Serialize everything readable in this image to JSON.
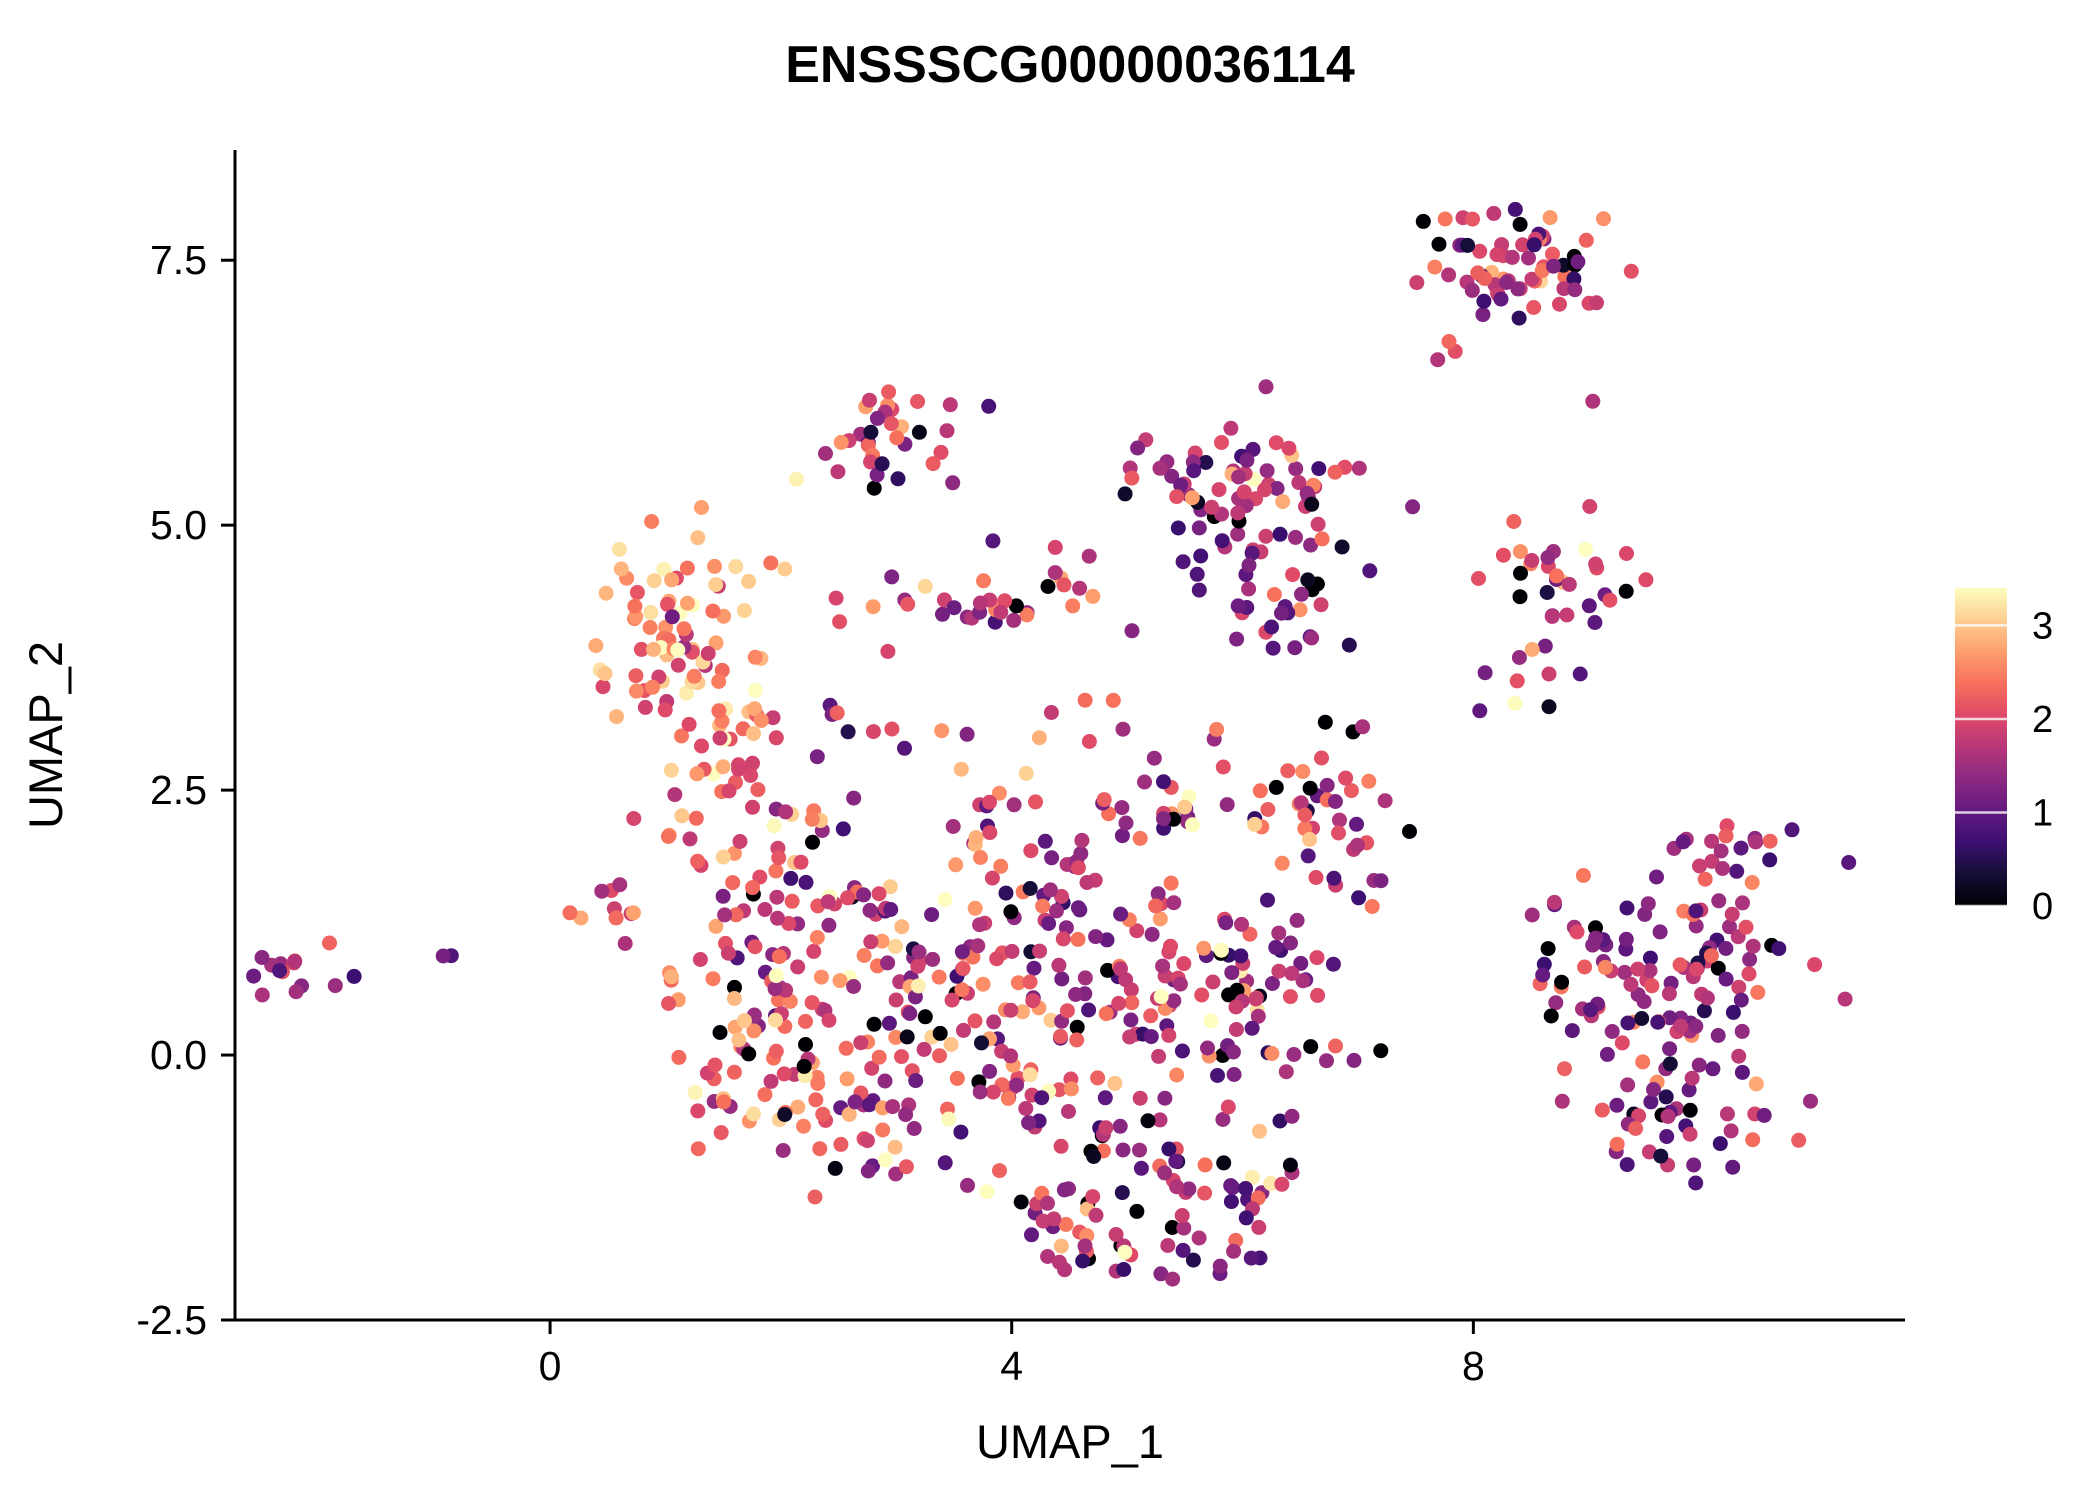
{
  "chart_data": {
    "type": "scatter",
    "title": "ENSSSCG00000036114",
    "xlabel": "UMAP_1",
    "ylabel": "UMAP_2",
    "xlim": [
      -2.73,
      11.74
    ],
    "ylim": [
      -2.5,
      8.54
    ],
    "xticks": [
      0,
      4,
      8
    ],
    "xtick_labels": [
      "0",
      "4",
      "8"
    ],
    "yticks": [
      -2.5,
      0.0,
      2.5,
      5.0,
      7.5
    ],
    "ytick_labels": [
      "-2.5",
      "0.0",
      "2.5",
      "5.0",
      "7.5"
    ],
    "grid": false,
    "legend_position": "right",
    "point_radius_px": 7.5,
    "seed": 7,
    "colorbar": {
      "min": 0,
      "max": 3.4,
      "ticks": [
        0,
        1,
        2,
        3
      ],
      "tick_labels": [
        "0",
        "1",
        "2",
        "3"
      ],
      "colormap_name": "magma",
      "stops": [
        [
          0.0,
          "#000004"
        ],
        [
          0.1,
          "#140e36"
        ],
        [
          0.2,
          "#3b0f70"
        ],
        [
          0.3,
          "#641a80"
        ],
        [
          0.4,
          "#8c2981"
        ],
        [
          0.5,
          "#b73779"
        ],
        [
          0.6,
          "#de4968"
        ],
        [
          0.7,
          "#f7705c"
        ],
        [
          0.8,
          "#fe9f6d"
        ],
        [
          0.9,
          "#fecf92"
        ],
        [
          1.0,
          "#fcfdbf"
        ]
      ]
    },
    "cluster_fields": [
      "x",
      "y",
      "sd_x",
      "sd_y",
      "n_points",
      "expr_mean",
      "expr_sd",
      "zero_fraction"
    ],
    "clusters": [
      [
        -2.25,
        0.75,
        0.2,
        0.12,
        16,
        1.6,
        0.7,
        0.06
      ],
      [
        -0.85,
        0.9,
        0.05,
        0.05,
        2,
        1.3,
        0.3,
        0
      ],
      [
        8.35,
        7.5,
        0.42,
        0.26,
        68,
        1.8,
        0.75,
        0.07
      ],
      [
        7.75,
        6.65,
        0.12,
        0.12,
        3,
        2.2,
        0.4,
        0
      ],
      [
        9.0,
        6.15,
        0.03,
        0.03,
        1,
        1.6,
        0.1,
        0
      ],
      [
        2.9,
        5.8,
        0.28,
        0.27,
        30,
        1.7,
        0.75,
        0.1
      ],
      [
        3.35,
        5.55,
        0.12,
        0.18,
        4,
        1.6,
        0.5,
        0
      ],
      [
        6.0,
        5.4,
        0.45,
        0.33,
        72,
        1.6,
        0.65,
        0.04
      ],
      [
        6.3,
        4.4,
        0.35,
        0.3,
        34,
        1.4,
        0.6,
        0.05
      ],
      [
        8.7,
        4.5,
        0.3,
        0.28,
        30,
        1.7,
        0.65,
        0.05
      ],
      [
        8.4,
        3.6,
        0.22,
        0.15,
        10,
        1.6,
        0.6,
        0.1
      ],
      [
        1.1,
        3.9,
        0.38,
        0.45,
        80,
        2.7,
        0.5,
        0.01
      ],
      [
        1.6,
        2.9,
        0.28,
        0.3,
        28,
        2.5,
        0.6,
        0.02
      ],
      [
        3.8,
        4.3,
        0.6,
        0.14,
        28,
        1.8,
        0.8,
        0.1
      ],
      [
        2.6,
        3.3,
        0.3,
        0.3,
        12,
        1.8,
        0.7,
        0.05
      ],
      [
        4.5,
        4.7,
        0.3,
        0.22,
        6,
        1.9,
        0.6,
        0
      ],
      [
        0.5,
        1.4,
        0.28,
        0.14,
        9,
        2.0,
        0.6,
        0
      ],
      [
        1.0,
        0.7,
        0.2,
        0.15,
        6,
        2.0,
        0.7,
        0
      ],
      [
        1.4,
        2.2,
        0.22,
        0.18,
        10,
        2.3,
        0.6,
        0
      ],
      [
        2.0,
        1.6,
        0.35,
        0.4,
        42,
        2.0,
        0.7,
        0.03
      ],
      [
        1.8,
        0.4,
        0.35,
        0.45,
        55,
        2.2,
        0.7,
        0.02
      ],
      [
        1.5,
        -0.5,
        0.2,
        0.3,
        10,
        2.2,
        0.6,
        0
      ],
      [
        2.6,
        -0.5,
        0.4,
        0.4,
        45,
        2.0,
        0.7,
        0.03
      ],
      [
        3.3,
        0.6,
        0.45,
        0.5,
        55,
        1.9,
        0.7,
        0.04
      ],
      [
        4.2,
        -0.2,
        0.5,
        0.55,
        60,
        1.8,
        0.7,
        0.05
      ],
      [
        4.6,
        1.2,
        0.5,
        0.5,
        58,
        1.9,
        0.7,
        0.04
      ],
      [
        5.4,
        0.3,
        0.5,
        0.55,
        60,
        1.7,
        0.7,
        0.05
      ],
      [
        5.6,
        -1.2,
        0.45,
        0.4,
        45,
        1.6,
        0.7,
        0.06
      ],
      [
        4.5,
        -1.6,
        0.4,
        0.22,
        25,
        1.8,
        0.7,
        0.05
      ],
      [
        5.3,
        -1.9,
        0.3,
        0.12,
        14,
        1.5,
        0.6,
        0.07
      ],
      [
        6.2,
        0.6,
        0.35,
        0.5,
        40,
        1.6,
        0.65,
        0.05
      ],
      [
        6.5,
        2.3,
        0.35,
        0.33,
        30,
        2.0,
        0.7,
        0.05
      ],
      [
        5.3,
        2.3,
        0.4,
        0.28,
        24,
        1.9,
        0.7,
        0.06
      ],
      [
        3.6,
        2.2,
        0.4,
        0.33,
        20,
        2.0,
        0.7,
        0.05
      ],
      [
        2.9,
        1.2,
        0.3,
        0.3,
        20,
        2.1,
        0.7,
        0
      ],
      [
        7.0,
        1.6,
        0.22,
        0.3,
        12,
        1.8,
        0.6,
        0.05
      ],
      [
        7.2,
        0.0,
        0.06,
        0.06,
        1,
        0.1,
        0.05,
        1
      ],
      [
        4.6,
        3.1,
        0.25,
        0.2,
        5,
        2.0,
        0.6,
        0
      ],
      [
        7.0,
        3.0,
        0.15,
        0.12,
        3,
        2.2,
        0.5,
        0.3
      ],
      [
        7.4,
        5.2,
        0.05,
        0.05,
        1,
        1.2,
        0.1,
        0
      ],
      [
        9.3,
        0.6,
        0.4,
        0.5,
        60,
        1.4,
        0.6,
        0.05
      ],
      [
        10.1,
        0.9,
        0.4,
        0.45,
        55,
        1.5,
        0.65,
        0.04
      ],
      [
        9.8,
        -0.6,
        0.45,
        0.33,
        40,
        1.5,
        0.6,
        0.05
      ],
      [
        10.3,
        1.9,
        0.3,
        0.18,
        15,
        1.6,
        0.6,
        0.05
      ],
      [
        8.8,
        1.4,
        0.15,
        0.15,
        4,
        1.5,
        0.4,
        0
      ]
    ]
  }
}
